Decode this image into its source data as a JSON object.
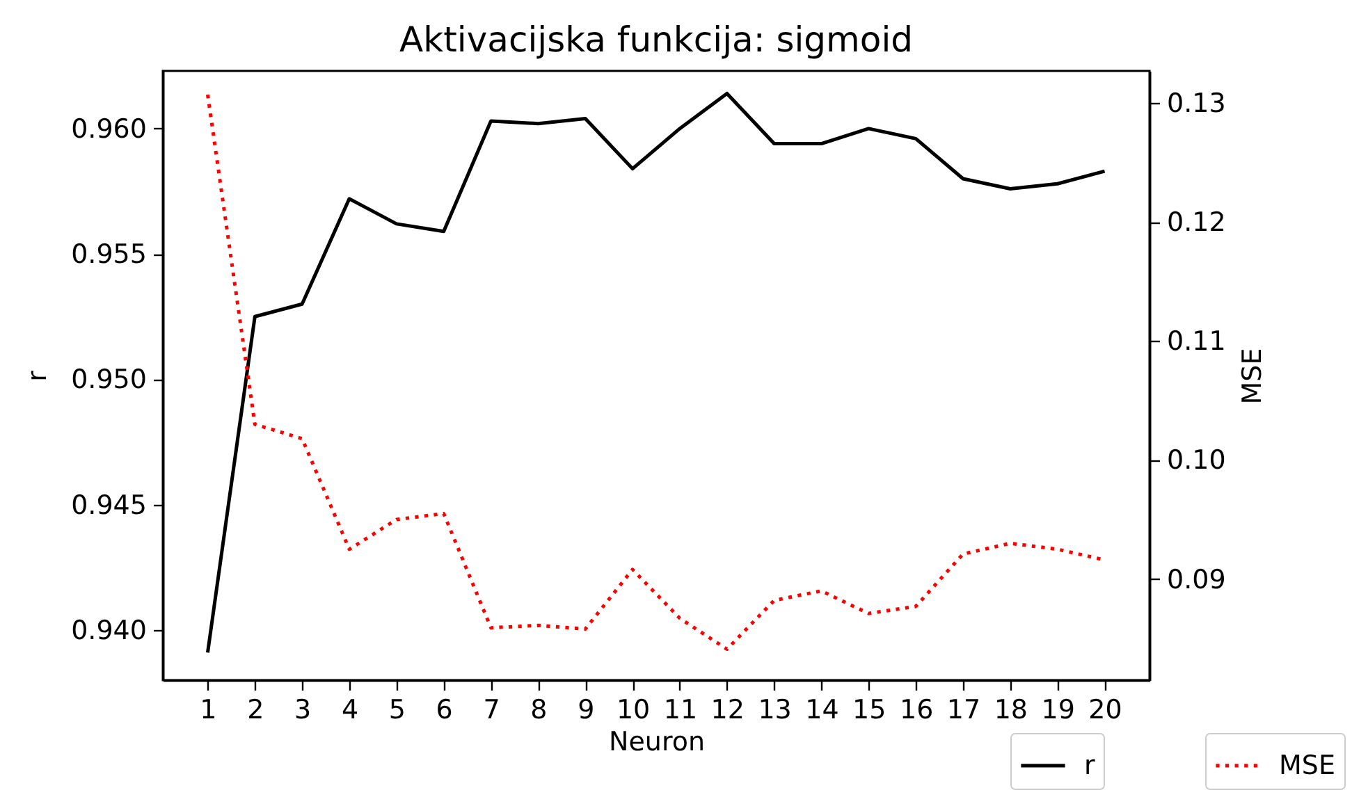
{
  "chart_data": {
    "type": "line",
    "title": "Aktivacijska funkcija: sigmoid",
    "xlabel": "Neuron",
    "ylabel": "r",
    "y2label": "MSE",
    "x": [
      1,
      2,
      3,
      4,
      5,
      6,
      7,
      8,
      9,
      10,
      11,
      12,
      13,
      14,
      15,
      16,
      17,
      18,
      19,
      20
    ],
    "series": [
      {
        "name": "r",
        "color": "#000000",
        "line_style": "solid",
        "values": [
          0.9391,
          0.9525,
          0.953,
          0.9572,
          0.9562,
          0.9559,
          0.9603,
          0.9602,
          0.9604,
          0.9584,
          0.96,
          0.9614,
          0.9594,
          0.9594,
          0.96,
          0.9596,
          0.958,
          0.9576,
          0.9578,
          0.9583
        ]
      },
      {
        "name": "MSE",
        "color": "#ff0000",
        "line_style": "dotted",
        "axis": "y2",
        "values": [
          0.1307,
          0.103,
          0.1018,
          0.0925,
          0.095,
          0.0955,
          0.0859,
          0.0861,
          0.0858,
          0.0908,
          0.0867,
          0.0841,
          0.0882,
          0.089,
          0.0871,
          0.0877,
          0.0921,
          0.093,
          0.0925,
          0.0916
        ]
      }
    ],
    "xlim": [
      0.05,
      20.95
    ],
    "xticks": [
      1,
      2,
      3,
      4,
      5,
      6,
      7,
      8,
      9,
      10,
      11,
      12,
      13,
      14,
      15,
      16,
      17,
      18,
      19,
      20
    ],
    "ylim": [
      0.938,
      0.9623
    ],
    "yticks": [
      {
        "value": 0.94,
        "label": "0.940"
      },
      {
        "value": 0.945,
        "label": "0.945"
      },
      {
        "value": 0.95,
        "label": "0.950"
      },
      {
        "value": 0.955,
        "label": "0.955"
      },
      {
        "value": 0.96,
        "label": "0.960"
      }
    ],
    "y2lim": [
      0.0815,
      0.1327
    ],
    "y2ticks": [
      0.09,
      {
        "value": 0.1,
        "label": "0.10"
      },
      0.11,
      0.12,
      0.13
    ],
    "legend": "bottom right"
  }
}
